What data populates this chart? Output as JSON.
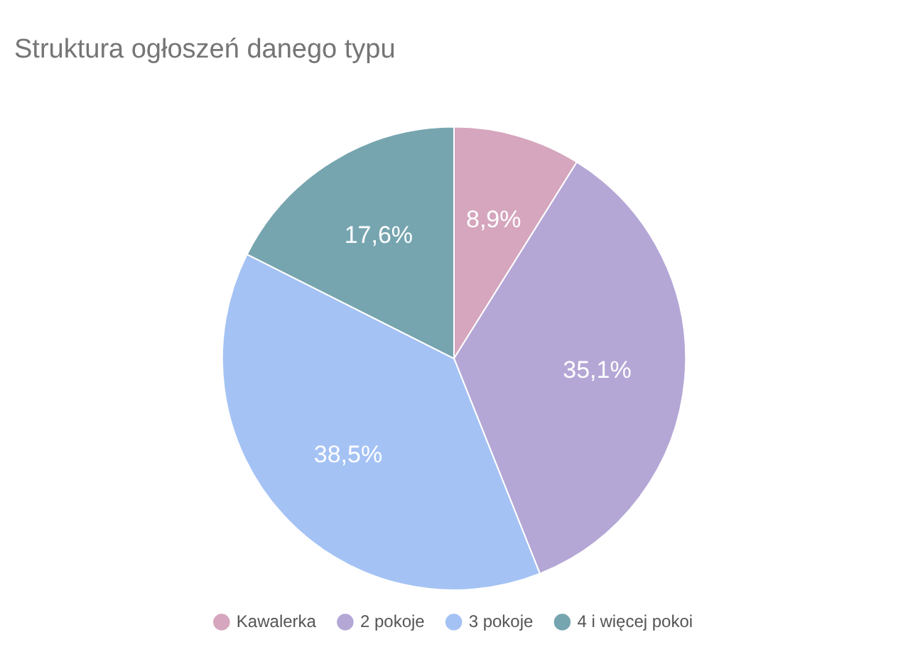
{
  "chart_data": {
    "type": "pie",
    "title": "Struktura ogłoszeń danego typu",
    "categories": [
      "Kawalerka",
      "2 pokoje",
      "3 pokoje",
      "4 i więcej pokoi"
    ],
    "values": [
      8.9,
      35.1,
      38.5,
      17.6
    ],
    "colors": [
      "#d5a6bd",
      "#b4a7d6",
      "#a4c2f4",
      "#76a5af"
    ],
    "value_labels": [
      "8,9%",
      "35,1%",
      "38,5%",
      "17,6%"
    ],
    "legend": "bottom"
  }
}
